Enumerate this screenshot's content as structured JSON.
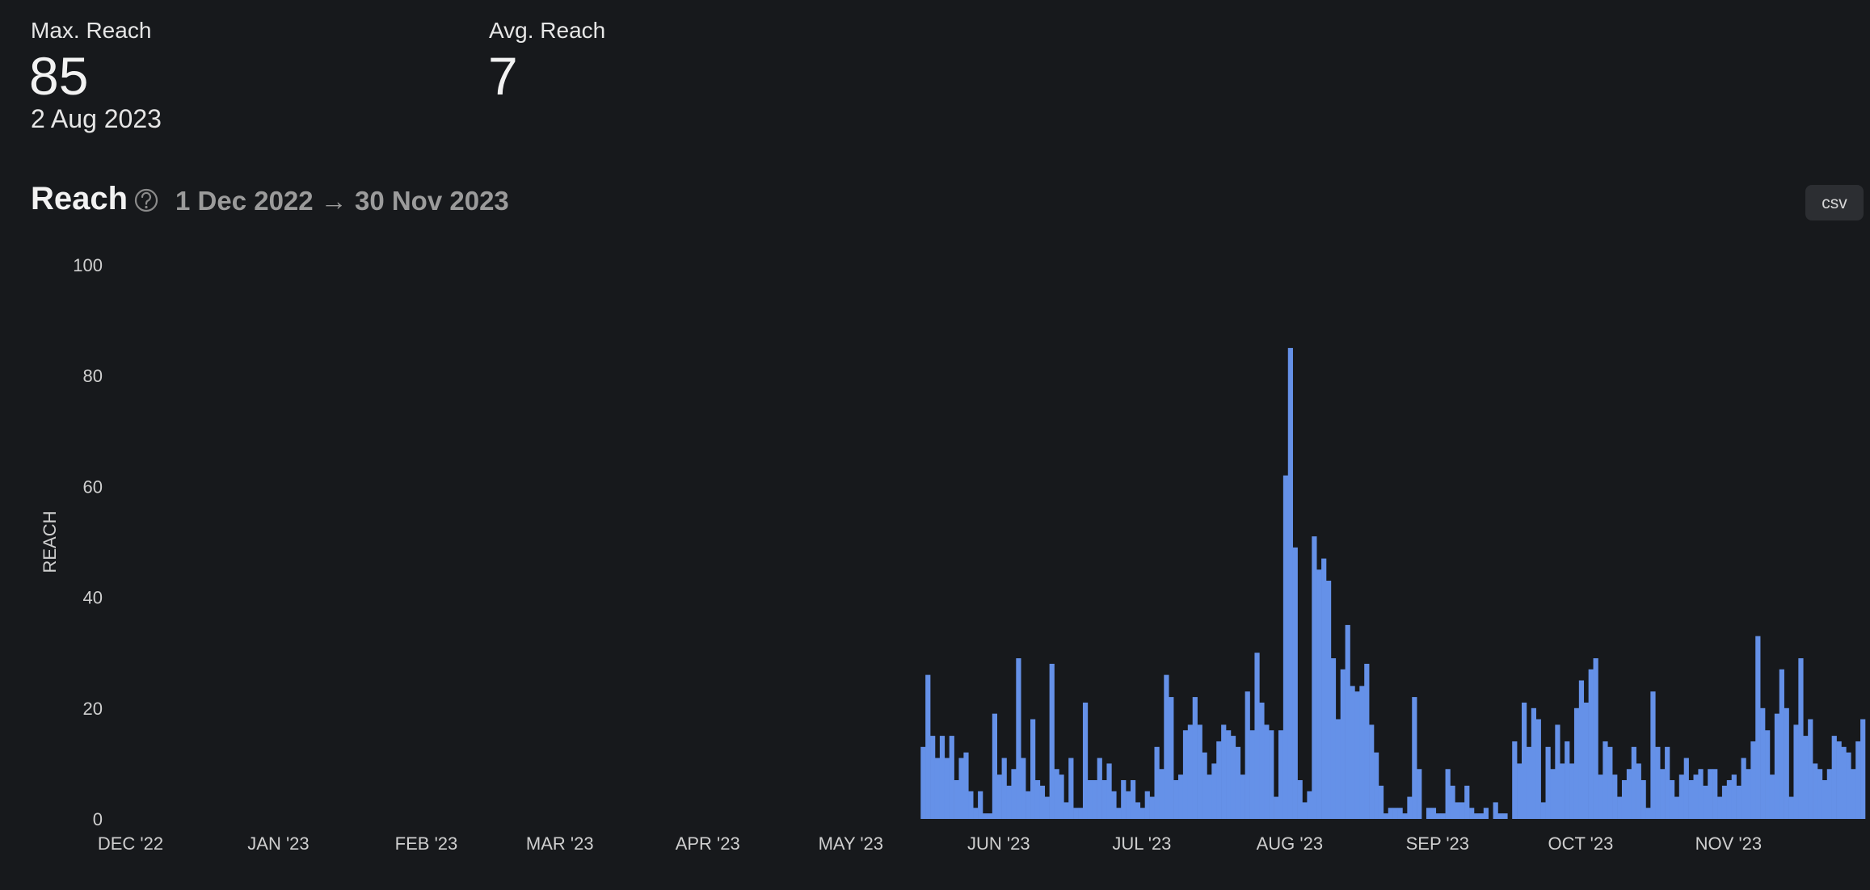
{
  "stats": [
    {
      "label": "Max. Reach",
      "value": 85,
      "date": "2 Aug 2023"
    },
    {
      "label": "Avg. Reach",
      "value": 7
    }
  ],
  "section": {
    "title": "Reach",
    "range": "1 Dec 2022 → 30 Nov 2023",
    "button": "csv"
  },
  "chart_data": {
    "type": "bar",
    "ylabel": "REACH",
    "color": "#6591e8",
    "ylim": [
      0,
      100
    ],
    "yticks": [
      0,
      20,
      40,
      60,
      80,
      100
    ],
    "categories": [
      "DEC '22",
      null,
      null,
      null,
      null,
      null,
      null,
      null,
      null,
      null,
      null,
      null,
      null,
      null,
      null,
      null,
      null,
      null,
      null,
      null,
      null,
      null,
      null,
      null,
      null,
      null,
      null,
      null,
      null,
      null,
      null,
      "JAN '23",
      null,
      null,
      null,
      null,
      null,
      null,
      null,
      null,
      null,
      null,
      null,
      null,
      null,
      null,
      null,
      null,
      null,
      null,
      null,
      null,
      null,
      null,
      null,
      null,
      null,
      null,
      null,
      null,
      null,
      null,
      "FEB '23",
      null,
      null,
      null,
      null,
      null,
      null,
      null,
      null,
      null,
      null,
      null,
      null,
      null,
      null,
      null,
      null,
      null,
      null,
      null,
      null,
      null,
      null,
      null,
      null,
      null,
      null,
      null,
      "MAR '23",
      null,
      null,
      null,
      null,
      null,
      null,
      null,
      null,
      null,
      null,
      null,
      null,
      null,
      null,
      null,
      null,
      null,
      null,
      null,
      null,
      null,
      null,
      null,
      null,
      null,
      null,
      null,
      null,
      null,
      null,
      "APR '23",
      null,
      null,
      null,
      null,
      null,
      null,
      null,
      null,
      null,
      null,
      null,
      null,
      null,
      null,
      null,
      null,
      null,
      null,
      null,
      null,
      null,
      null,
      null,
      null,
      null,
      null,
      null,
      null,
      null,
      "MAY '23",
      null,
      null,
      null,
      null,
      null,
      null,
      null,
      null,
      null,
      null,
      null,
      null,
      null,
      null,
      null,
      null,
      null,
      null,
      null,
      null,
      null,
      null,
      null,
      null,
      null,
      null,
      null,
      null,
      null,
      null,
      "JUN '23",
      null,
      null,
      null,
      null,
      null,
      null,
      null,
      null,
      null,
      null,
      null,
      null,
      null,
      null,
      null,
      null,
      null,
      null,
      null,
      null,
      null,
      null,
      null,
      null,
      null,
      null,
      null,
      null,
      null,
      "JUL '23",
      null,
      null,
      null,
      null,
      null,
      null,
      null,
      null,
      null,
      null,
      null,
      null,
      null,
      null,
      null,
      null,
      null,
      null,
      null,
      null,
      null,
      null,
      null,
      null,
      null,
      null,
      null,
      null,
      null,
      null,
      "AUG '23",
      null,
      null,
      null,
      null,
      null,
      null,
      null,
      null,
      null,
      null,
      null,
      null,
      null,
      null,
      null,
      null,
      null,
      null,
      null,
      null,
      null,
      null,
      null,
      null,
      null,
      null,
      null,
      null,
      null,
      null,
      "SEP '23",
      null,
      null,
      null,
      null,
      null,
      null,
      null,
      null,
      null,
      null,
      null,
      null,
      null,
      null,
      null,
      null,
      null,
      null,
      null,
      null,
      null,
      null,
      null,
      null,
      null,
      null,
      null,
      null,
      null,
      "OCT '23",
      null,
      null,
      null,
      null,
      null,
      null,
      null,
      null,
      null,
      null,
      null,
      null,
      null,
      null,
      null,
      null,
      null,
      null,
      null,
      null,
      null,
      null,
      null,
      null,
      null,
      null,
      null,
      null,
      null,
      null,
      "NOV '23",
      null,
      null,
      null,
      null,
      null,
      null,
      null,
      null,
      null,
      null,
      null,
      null,
      null,
      null,
      null,
      null,
      null,
      null,
      null,
      null,
      null,
      null,
      null,
      null,
      null,
      null,
      null,
      null,
      null
    ],
    "values": [
      0,
      0,
      0,
      0,
      0,
      0,
      0,
      0,
      0,
      0,
      0,
      0,
      0,
      0,
      0,
      0,
      0,
      0,
      0,
      0,
      0,
      0,
      0,
      0,
      0,
      0,
      0,
      0,
      0,
      0,
      0,
      0,
      0,
      0,
      0,
      0,
      0,
      0,
      0,
      0,
      0,
      0,
      0,
      0,
      0,
      0,
      0,
      0,
      0,
      0,
      0,
      0,
      0,
      0,
      0,
      0,
      0,
      0,
      0,
      0,
      0,
      0,
      0,
      0,
      0,
      0,
      0,
      0,
      0,
      0,
      0,
      0,
      0,
      0,
      0,
      0,
      0,
      0,
      0,
      0,
      0,
      0,
      0,
      0,
      0,
      0,
      0,
      0,
      0,
      0,
      0,
      0,
      0,
      0,
      0,
      0,
      0,
      0,
      0,
      0,
      0,
      0,
      0,
      0,
      0,
      0,
      0,
      0,
      0,
      0,
      0,
      0,
      0,
      0,
      0,
      0,
      0,
      0,
      0,
      0,
      0,
      0,
      0,
      0,
      0,
      0,
      0,
      0,
      0,
      0,
      0,
      0,
      0,
      0,
      0,
      0,
      0,
      0,
      0,
      0,
      0,
      0,
      0,
      0,
      0,
      0,
      0,
      0,
      0,
      0,
      0,
      0,
      0,
      0,
      0,
      0,
      0,
      0,
      0,
      0,
      0,
      0,
      0,
      0,
      0,
      0,
      0,
      13,
      26,
      15,
      11,
      15,
      11,
      15,
      7,
      11,
      12,
      5,
      2,
      5,
      1,
      1,
      19,
      8,
      11,
      6,
      9,
      29,
      11,
      5,
      18,
      7,
      6,
      4,
      28,
      9,
      8,
      3,
      11,
      2,
      2,
      21,
      7,
      7,
      11,
      7,
      10,
      5,
      2,
      7,
      5,
      7,
      3,
      2,
      5,
      4,
      13,
      9,
      26,
      22,
      7,
      8,
      16,
      17,
      22,
      17,
      12,
      8,
      10,
      14,
      17,
      16,
      15,
      13,
      8,
      23,
      16,
      30,
      21,
      17,
      16,
      4,
      16,
      62,
      85,
      49,
      7,
      3,
      5,
      51,
      45,
      47,
      43,
      29,
      18,
      27,
      35,
      24,
      23,
      24,
      28,
      17,
      12,
      6,
      1,
      2,
      2,
      2,
      1,
      4,
      22,
      9,
      0,
      2,
      2,
      1,
      1,
      9,
      6,
      3,
      3,
      6,
      2,
      1,
      1,
      2,
      0,
      3,
      1,
      1,
      0,
      14,
      10,
      21,
      13,
      20,
      18,
      3,
      13,
      9,
      17,
      10,
      14,
      10,
      20,
      25,
      21,
      27,
      29,
      8,
      14,
      13,
      8,
      4,
      7,
      9,
      13,
      10,
      7,
      2,
      23,
      13,
      9,
      13,
      7,
      4,
      8,
      11,
      7,
      8,
      9,
      6,
      9,
      9,
      4,
      6,
      7,
      8,
      6,
      11,
      9,
      14,
      33,
      20,
      16,
      8,
      19,
      27,
      20,
      4,
      17,
      29,
      15,
      18,
      10,
      9,
      7,
      9,
      15,
      14,
      13,
      12,
      9,
      14,
      18
    ]
  }
}
